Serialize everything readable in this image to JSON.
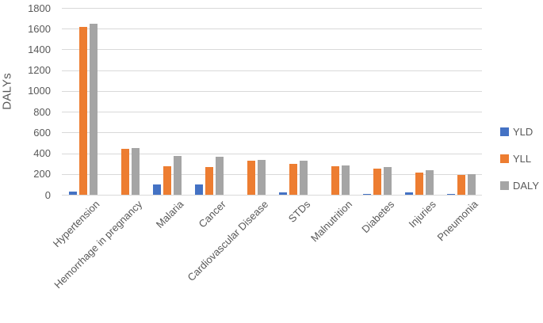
{
  "chart_data": {
    "type": "bar",
    "title": "",
    "xlabel": "",
    "ylabel": "DALYs",
    "ylim": [
      0,
      1800
    ],
    "yticks": [
      0,
      200,
      400,
      600,
      800,
      1000,
      1200,
      1400,
      1600,
      1800
    ],
    "grid": true,
    "legend_position": "right",
    "legend_entries": [
      "YLD",
      "YLL",
      "DALY"
    ],
    "categories": [
      "Hypertension",
      "Hemorrhage in pregnancy",
      "Malaria",
      "Cancer",
      "Cardiovascular Disease",
      "STDs",
      "Malnutrition",
      "Diabetes",
      "Injuries",
      "Pneumonia"
    ],
    "series": [
      {
        "name": "YLD",
        "color": "#4472C4",
        "values": [
          30,
          0,
          100,
          100,
          0,
          25,
          0,
          10,
          25,
          10
        ]
      },
      {
        "name": "YLL",
        "color": "#ED7D31",
        "values": [
          1620,
          445,
          275,
          265,
          330,
          300,
          275,
          255,
          215,
          190
        ]
      },
      {
        "name": "DALY",
        "color": "#A5A5A5",
        "values": [
          1650,
          450,
          375,
          365,
          335,
          325,
          280,
          265,
          240,
          200
        ]
      }
    ]
  },
  "colors": {
    "background": "#FFFFFF",
    "gridline": "#D9D9D9",
    "axis_text": "#595959",
    "series_yld": "#4472C4",
    "series_yll": "#ED7D31",
    "series_daly": "#A5A5A5"
  }
}
